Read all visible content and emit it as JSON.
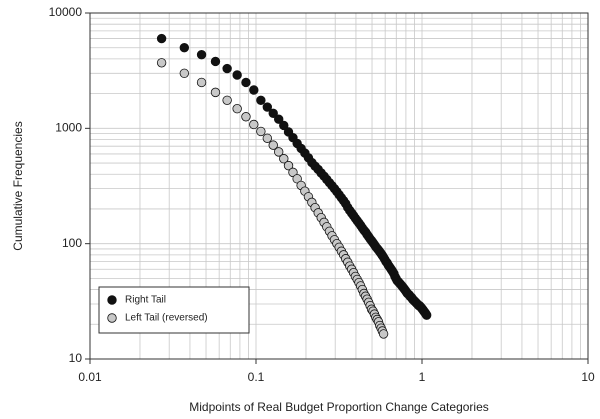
{
  "chart_data": {
    "type": "scatter",
    "x_label": "Midpoints of Real Budget Proportion Change Categories",
    "y_label": "Cumulative Frequencies",
    "xscale": "log",
    "yscale": "log",
    "grid": true,
    "legend": "lower left",
    "xlim": [
      0.01,
      10
    ],
    "xticks": [
      0.01,
      0.1,
      1,
      10
    ],
    "ylim": [
      10,
      10000
    ],
    "yticks": [
      10,
      100,
      1000,
      10000
    ],
    "series": [
      {
        "name": "Right Tail",
        "color": "#111111",
        "x": [
          0.027,
          0.037,
          0.047,
          0.057,
          0.067,
          0.077,
          0.087,
          0.097,
          0.107,
          0.117,
          0.127,
          0.137,
          0.147,
          0.157,
          0.167,
          0.177,
          0.187,
          0.197,
          0.207,
          0.217,
          0.227,
          0.237,
          0.247,
          0.257,
          0.267,
          0.277,
          0.287,
          0.297,
          0.307,
          0.317,
          0.327,
          0.337,
          0.347,
          0.357,
          0.367,
          0.377,
          0.387,
          0.397,
          0.407,
          0.417,
          0.427,
          0.437,
          0.447,
          0.457,
          0.467,
          0.477,
          0.487,
          0.497,
          0.507,
          0.517,
          0.527,
          0.537,
          0.547,
          0.557,
          0.567,
          0.577,
          0.587,
          0.597,
          0.607,
          0.617,
          0.627,
          0.637,
          0.647,
          0.657,
          0.667,
          0.677,
          0.687,
          0.697,
          0.707,
          0.717,
          0.727,
          0.737,
          0.747,
          0.757,
          0.767,
          0.777,
          0.787,
          0.797,
          0.807,
          0.817,
          0.827,
          0.837,
          0.847,
          0.857,
          0.867,
          0.877,
          0.887,
          0.897,
          0.907,
          0.917,
          0.927,
          0.937,
          0.947,
          0.957,
          0.967,
          0.977,
          0.987,
          0.997,
          1.007,
          1.017,
          1.027,
          1.037,
          1.047,
          1.057,
          1.067
        ],
        "values": [
          6000,
          5000,
          4350,
          3800,
          3300,
          2900,
          2500,
          2150,
          1750,
          1530,
          1350,
          1200,
          1060,
          930,
          830,
          740,
          670,
          610,
          555,
          505,
          470,
          440,
          410,
          385,
          360,
          338,
          318,
          300,
          282,
          265,
          250,
          236,
          222,
          206,
          194,
          184,
          175,
          166,
          158,
          151,
          144,
          137,
          131,
          126,
          120,
          115,
          110,
          106,
          102,
          98,
          94,
          91,
          88,
          85,
          82,
          79,
          76,
          73,
          70,
          68,
          65,
          63,
          61,
          59,
          57,
          55,
          52,
          50,
          48,
          47,
          46,
          45,
          44,
          43,
          42,
          41,
          40,
          39,
          38,
          37,
          36.5,
          36,
          35,
          34.5,
          34,
          33,
          32.5,
          32,
          31.5,
          31,
          30.5,
          30,
          29.5,
          29,
          29,
          28.5,
          28,
          27.5,
          27,
          26.5,
          26,
          25.5,
          25,
          24.5,
          24
        ]
      },
      {
        "name": "Left Tail (reversed)",
        "color": "#c8c8c8",
        "x": [
          0.027,
          0.037,
          0.047,
          0.057,
          0.067,
          0.077,
          0.087,
          0.097,
          0.107,
          0.117,
          0.127,
          0.137,
          0.147,
          0.157,
          0.167,
          0.177,
          0.187,
          0.197,
          0.207,
          0.217,
          0.227,
          0.237,
          0.247,
          0.257,
          0.267,
          0.277,
          0.287,
          0.297,
          0.307,
          0.317,
          0.327,
          0.337,
          0.347,
          0.357,
          0.367,
          0.377,
          0.387,
          0.397,
          0.407,
          0.417,
          0.427,
          0.437,
          0.447,
          0.457,
          0.467,
          0.477,
          0.487,
          0.497,
          0.507,
          0.517,
          0.527,
          0.537,
          0.547,
          0.557,
          0.567,
          0.577,
          0.587
        ],
        "values": [
          3700,
          3000,
          2500,
          2050,
          1750,
          1480,
          1260,
          1080,
          940,
          820,
          715,
          625,
          545,
          475,
          415,
          365,
          320,
          285,
          255,
          228,
          205,
          185,
          168,
          153,
          140,
          128,
          117,
          108,
          100,
          93,
          86,
          80,
          74,
          69,
          64,
          60,
          56,
          52,
          49,
          46,
          43,
          40,
          37,
          35,
          33,
          31,
          29,
          27,
          26,
          24.5,
          23,
          22,
          21,
          19.5,
          18.5,
          17.5,
          16.5
        ]
      }
    ]
  }
}
